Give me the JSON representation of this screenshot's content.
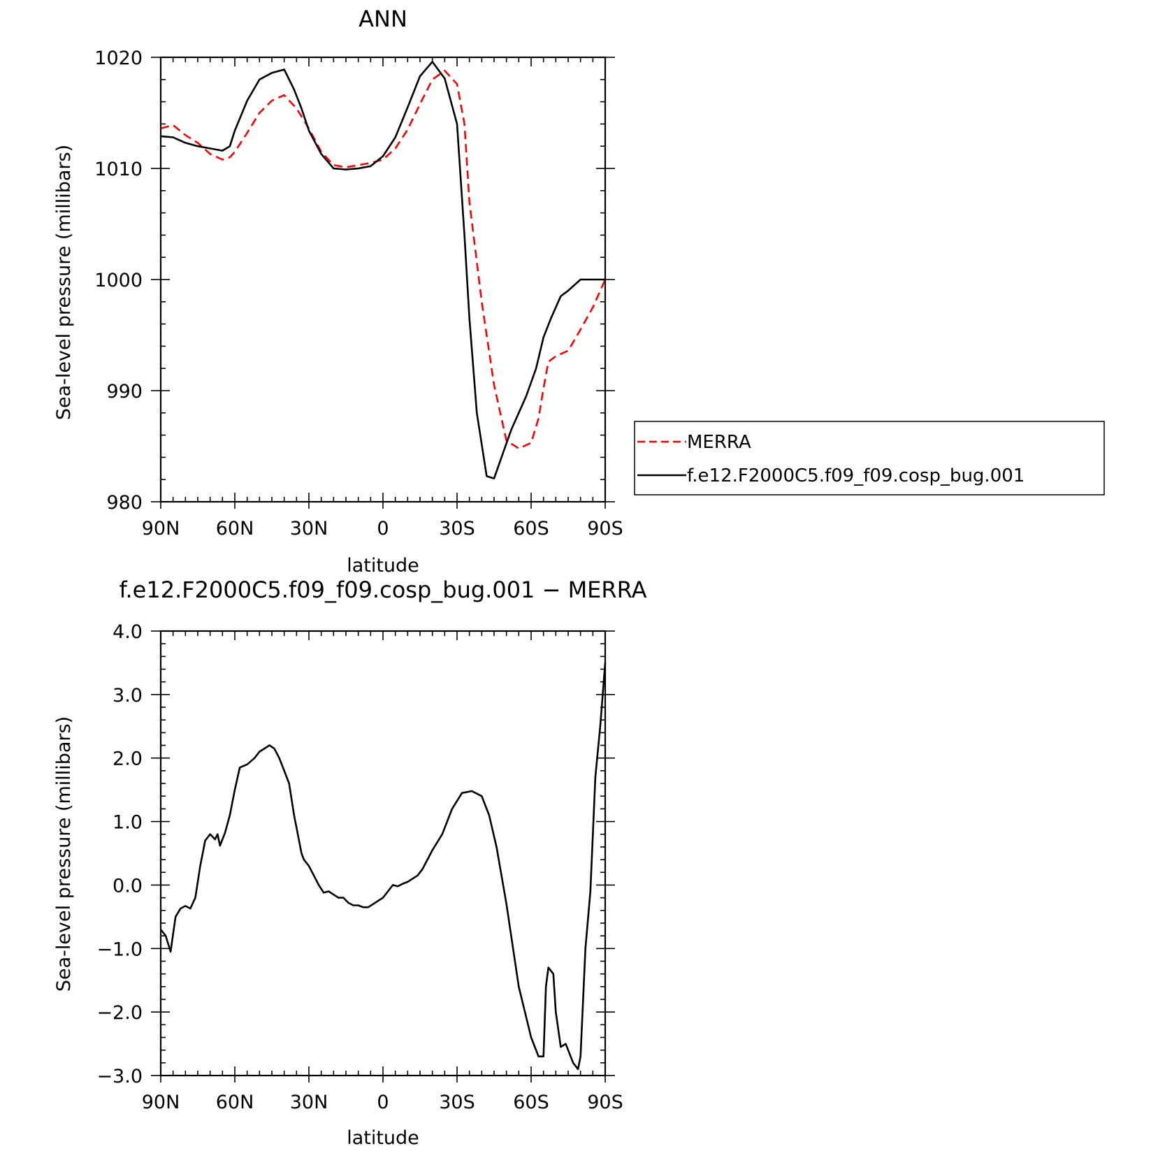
{
  "chart_data": [
    {
      "type": "line",
      "title": "ANN",
      "xlabel": "latitude",
      "ylabel": "Sea-level pressure (millibars)",
      "ylim": [
        980,
        1020
      ],
      "yticks": [
        "980",
        "990",
        "1000",
        "1010",
        "1020"
      ],
      "xlim": [
        90,
        -90
      ],
      "xticks": [
        {
          "value": 90,
          "label": "90N"
        },
        {
          "value": 60,
          "label": "60N"
        },
        {
          "value": 30,
          "label": "30N"
        },
        {
          "value": 0,
          "label": "0"
        },
        {
          "value": -30,
          "label": "30S"
        },
        {
          "value": -60,
          "label": "60S"
        },
        {
          "value": -90,
          "label": "90S"
        }
      ],
      "grid": false,
      "legend": "outside-right",
      "series": [
        {
          "name": "MERRA",
          "color": "#ff0000",
          "dash": "dashed",
          "x": [
            90,
            85,
            80,
            75,
            70,
            65,
            62,
            60,
            55,
            50,
            45,
            40,
            35,
            30,
            25,
            20,
            15,
            10,
            5,
            0,
            -5,
            -10,
            -15,
            -20,
            -25,
            -30,
            -33,
            -35,
            -40,
            -45,
            -50,
            -55,
            -60,
            -63,
            -65,
            -67,
            -70,
            -75,
            -80,
            -85,
            -90
          ],
          "y": [
            1013.6,
            1013.9,
            1013.0,
            1012.3,
            1011.3,
            1010.8,
            1011.0,
            1011.5,
            1013.2,
            1015.0,
            1016.1,
            1016.6,
            1015.4,
            1013.6,
            1011.5,
            1010.3,
            1010.1,
            1010.3,
            1010.5,
            1010.8,
            1011.8,
            1013.5,
            1015.8,
            1018.0,
            1018.8,
            1017.6,
            1014.0,
            1007.0,
            998.0,
            990.5,
            985.5,
            984.8,
            985.3,
            987.5,
            990.2,
            992.6,
            993.1,
            993.6,
            995.5,
            997.5,
            1000.0
          ]
        },
        {
          "name": "f.e12.F2000C5.f09_f09.cosp_bug.001",
          "color": "#000000",
          "dash": "solid",
          "x": [
            90,
            85,
            80,
            75,
            70,
            65,
            62,
            60,
            55,
            50,
            45,
            40,
            36,
            33,
            30,
            25,
            20,
            15,
            10,
            5,
            0,
            -5,
            -10,
            -15,
            -20,
            -25,
            -30,
            -33,
            -35,
            -38,
            -42,
            -45,
            -48,
            -52,
            -55,
            -58,
            -62,
            -65,
            -68,
            -72,
            -75,
            -80,
            -85,
            -90
          ],
          "y": [
            1012.9,
            1012.8,
            1012.3,
            1012.0,
            1011.8,
            1011.6,
            1012.0,
            1013.4,
            1016.1,
            1018.0,
            1018.6,
            1018.9,
            1017.1,
            1015.4,
            1013.4,
            1011.3,
            1010.0,
            1009.9,
            1010.0,
            1010.2,
            1011.1,
            1012.8,
            1015.5,
            1018.3,
            1019.6,
            1018.1,
            1014.0,
            1004.0,
            996.5,
            988.0,
            982.3,
            982.1,
            984.0,
            986.5,
            988.0,
            989.5,
            992.0,
            994.8,
            996.5,
            998.5,
            999.0,
            1000.0,
            1000.0,
            1000.0
          ]
        }
      ]
    },
    {
      "type": "line",
      "title": "f.e12.F2000C5.f09_f09.cosp_bug.001 − MERRA",
      "xlabel": "latitude",
      "ylabel": "Sea-level pressure (millibars)",
      "ylim": [
        -3.0,
        4.0
      ],
      "yticks": [
        "−3.0",
        "−2.0",
        "−1.0",
        "0.0",
        "1.0",
        "2.0",
        "3.0",
        "4.0"
      ],
      "xlim": [
        90,
        -90
      ],
      "xticks": [
        {
          "value": 90,
          "label": "90N"
        },
        {
          "value": 60,
          "label": "60N"
        },
        {
          "value": 30,
          "label": "30N"
        },
        {
          "value": 0,
          "label": "0"
        },
        {
          "value": -30,
          "label": "30S"
        },
        {
          "value": -60,
          "label": "60S"
        },
        {
          "value": -90,
          "label": "90S"
        }
      ],
      "grid": false,
      "series": [
        {
          "color": "#000000",
          "dash": "solid",
          "x": [
            90,
            88,
            86,
            84,
            82,
            80,
            78,
            76,
            74,
            72,
            70,
            68,
            67,
            66,
            64,
            62,
            60,
            58,
            55,
            52,
            50,
            48,
            46,
            44,
            42,
            40,
            38,
            36,
            34,
            33,
            32,
            30,
            28,
            26,
            24,
            22,
            20,
            18,
            16,
            14,
            12,
            10,
            8,
            6,
            4,
            2,
            0,
            -2,
            -4,
            -6,
            -8,
            -10,
            -12,
            -14,
            -16,
            -18,
            -20,
            -24,
            -28,
            -32,
            -36,
            -40,
            -43,
            -46,
            -50,
            -55,
            -60,
            -63,
            -65,
            -66,
            -67,
            -69,
            -70,
            -72,
            -74,
            -75,
            -77,
            -79,
            -80,
            -82,
            -84,
            -86,
            -88,
            -90
          ],
          "y": [
            -0.7,
            -0.8,
            -1.05,
            -0.5,
            -0.37,
            -0.33,
            -0.37,
            -0.2,
            0.3,
            0.7,
            0.8,
            0.72,
            0.8,
            0.62,
            0.82,
            1.1,
            1.5,
            1.85,
            1.9,
            2.0,
            2.1,
            2.15,
            2.2,
            2.15,
            2.0,
            1.8,
            1.6,
            1.1,
            0.7,
            0.5,
            0.4,
            0.3,
            0.15,
            0.0,
            -0.12,
            -0.1,
            -0.15,
            -0.2,
            -0.2,
            -0.28,
            -0.32,
            -0.32,
            -0.35,
            -0.35,
            -0.3,
            -0.25,
            -0.2,
            -0.1,
            0.0,
            -0.02,
            0.02,
            0.05,
            0.1,
            0.15,
            0.25,
            0.4,
            0.55,
            0.8,
            1.2,
            1.45,
            1.48,
            1.4,
            1.1,
            0.6,
            -0.3,
            -1.6,
            -2.4,
            -2.7,
            -2.7,
            -1.6,
            -1.3,
            -1.4,
            -2.0,
            -2.55,
            -2.5,
            -2.6,
            -2.8,
            -2.9,
            -2.7,
            -1.0,
            -0.1,
            1.7,
            2.5,
            3.5
          ]
        }
      ]
    }
  ]
}
